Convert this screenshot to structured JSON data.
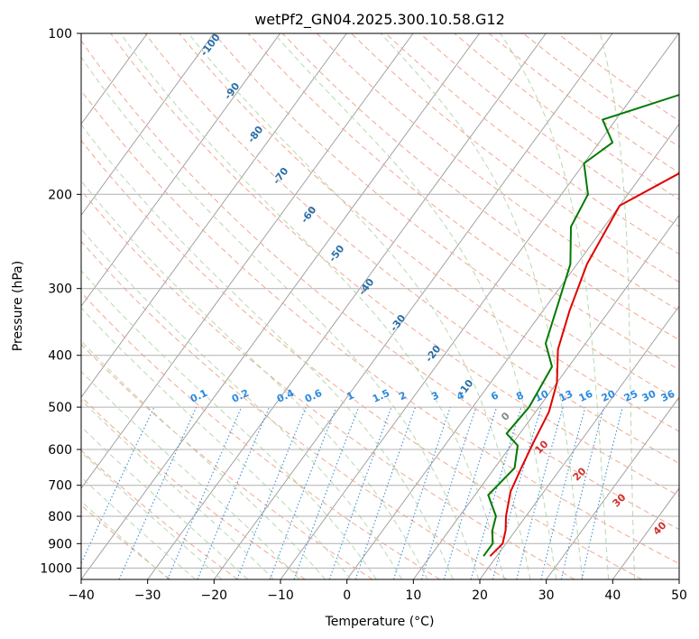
{
  "chart_data": {
    "type": "line",
    "title": "wetPf2_GN04.2025.300.10.58.G12",
    "xlabel": "Temperature (°C)",
    "ylabel": "Pressure (hPa)",
    "xlim": [
      -40,
      50
    ],
    "ylim": [
      1050,
      100
    ],
    "y_scale": "log",
    "x_ticks": [
      -40,
      -30,
      -20,
      -10,
      0,
      10,
      20,
      30,
      40,
      50
    ],
    "y_ticks": [
      100,
      200,
      300,
      400,
      500,
      600,
      700,
      800,
      900,
      1000
    ],
    "grid": true,
    "series": [
      {
        "color": "#e00000",
        "points": [
          [
            19.0,
            950
          ],
          [
            19.5,
            900
          ],
          [
            18.5,
            850
          ],
          [
            17.0,
            800
          ],
          [
            15.0,
            720
          ],
          [
            14.0,
            650
          ],
          [
            13.0,
            580
          ],
          [
            12.0,
            510
          ],
          [
            10.0,
            450
          ],
          [
            6.5,
            390
          ],
          [
            4.0,
            330
          ],
          [
            1.5,
            270
          ],
          [
            0.0,
            210
          ],
          [
            6.0,
            180
          ],
          [
            11.0,
            160
          ],
          [
            17.0,
            140
          ],
          [
            19.5,
            122
          ],
          [
            20.0,
            110
          ],
          [
            22.0,
            100
          ]
        ]
      },
      {
        "color": "#007a00",
        "points": [
          [
            18.0,
            950
          ],
          [
            18.0,
            900
          ],
          [
            16.5,
            850
          ],
          [
            15.5,
            800
          ],
          [
            12.0,
            730
          ],
          [
            13.0,
            650
          ],
          [
            11.0,
            590
          ],
          [
            8.0,
            560
          ],
          [
            8.5,
            500
          ],
          [
            7.5,
            420
          ],
          [
            4.0,
            380
          ],
          [
            1.5,
            320
          ],
          [
            -1.0,
            270
          ],
          [
            -5.0,
            230
          ],
          [
            -6.0,
            200
          ],
          [
            -10.0,
            175
          ],
          [
            -8.0,
            160
          ],
          [
            -12.0,
            145
          ],
          [
            -3.0,
            130
          ],
          [
            -1.0,
            115
          ],
          [
            1.0,
            100
          ]
        ]
      }
    ],
    "dry_adiabat_labels": [
      "-100",
      "-90",
      "-80",
      "-70",
      "-60",
      "-50",
      "-40",
      "-30",
      "-20",
      "-10"
    ],
    "mixing_ratio_labels": [
      "0.1",
      "0.2",
      "0.4",
      "0.6",
      "1",
      "1.5",
      "2",
      "3",
      "4",
      "6",
      "8",
      "10",
      "13",
      "16",
      "20",
      "25",
      "30",
      "36"
    ],
    "moist_adiabat_labels": [
      "0",
      "10",
      "20",
      "30",
      "40"
    ],
    "colors": {
      "temperature": "#e00000",
      "dewpoint": "#007a00",
      "grid": "#b0b0b0",
      "isotherm": "#999999",
      "dry_adiabat": "#f0a890",
      "moist_adiabat": "#b8d8b0",
      "mixing_ratio": "#3a8fd8",
      "dry_adiabat_label": "#2a6fa8",
      "mixing_ratio_label": "#2a8ae0",
      "moist_adiabat_label": "#d03030"
    }
  }
}
